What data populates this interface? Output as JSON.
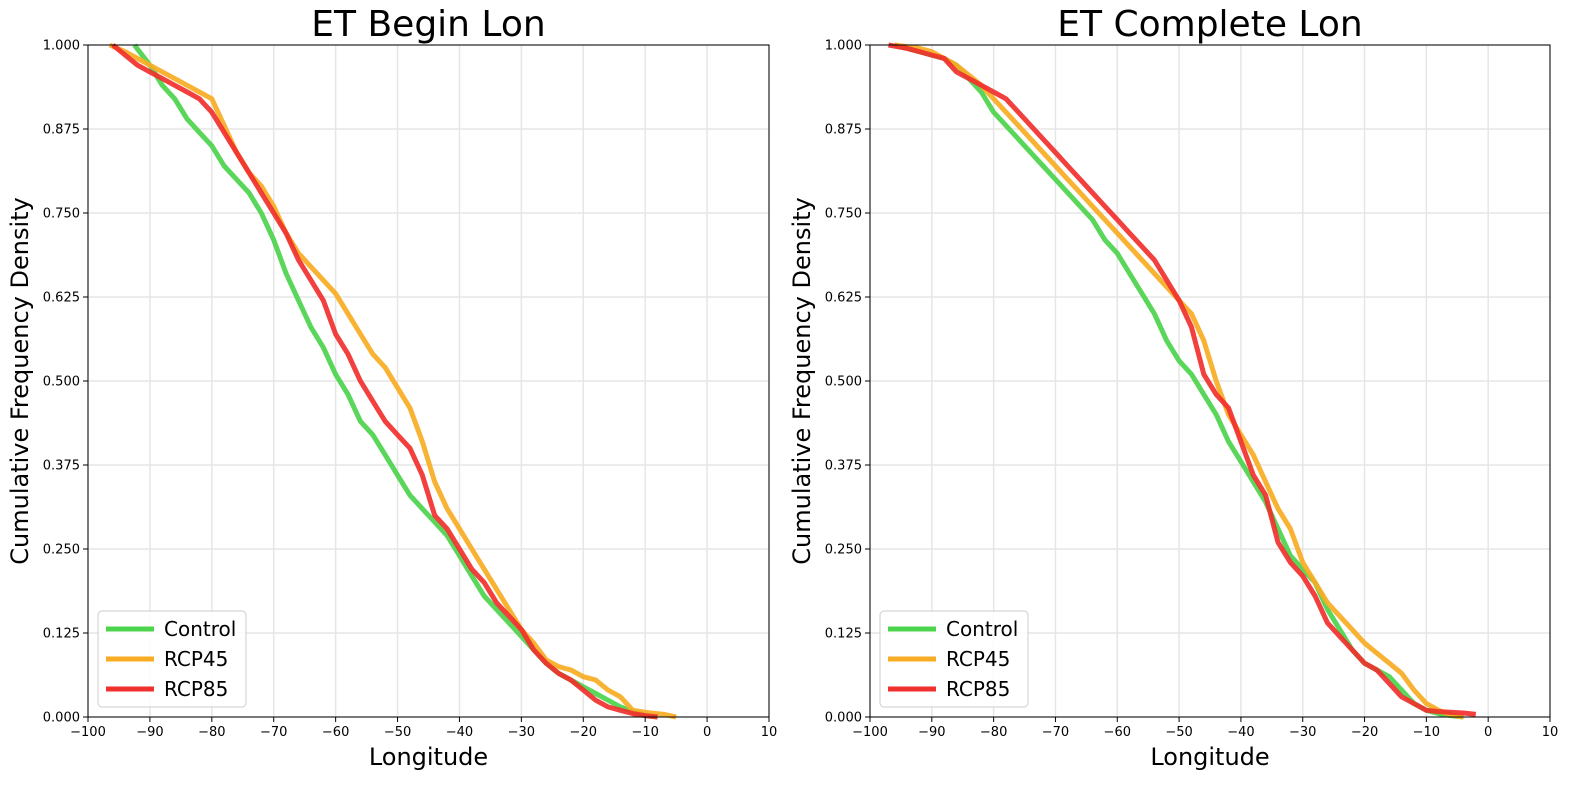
{
  "chart_data": [
    {
      "type": "line",
      "title": "ET Begin Lon",
      "xlabel": "Longitude",
      "ylabel": "Cumulative Frequency Density",
      "xlim": [
        -100,
        10
      ],
      "ylim": [
        0,
        1
      ],
      "xticks": [
        "−100",
        "−90",
        "−80",
        "−70",
        "−60",
        "−50",
        "−40",
        "−30",
        "−20",
        "−10",
        "0",
        "10"
      ],
      "yticks": [
        "0.000",
        "0.125",
        "0.250",
        "0.375",
        "0.500",
        "0.625",
        "0.750",
        "0.875",
        "1.000"
      ],
      "grid": true,
      "legend": "lower-left",
      "series": [
        {
          "name": "Control",
          "color": "#4cd44c",
          "x": [
            -92.5,
            -90,
            -88,
            -86,
            -84,
            -82,
            -80,
            -78,
            -76,
            -74,
            -72,
            -70,
            -68,
            -66,
            -64,
            -62,
            -60,
            -58,
            -56,
            -54,
            -52,
            -50,
            -48,
            -46,
            -44,
            -42,
            -40,
            -38,
            -36,
            -34,
            -32,
            -30,
            -28,
            -26,
            -24,
            -22,
            -20,
            -18,
            -16,
            -14,
            -12,
            -10,
            -8
          ],
          "y": [
            1.0,
            0.97,
            0.94,
            0.92,
            0.89,
            0.87,
            0.85,
            0.82,
            0.8,
            0.78,
            0.75,
            0.71,
            0.66,
            0.62,
            0.58,
            0.55,
            0.51,
            0.48,
            0.44,
            0.42,
            0.39,
            0.36,
            0.33,
            0.31,
            0.29,
            0.27,
            0.24,
            0.21,
            0.18,
            0.16,
            0.14,
            0.12,
            0.1,
            0.08,
            0.065,
            0.055,
            0.045,
            0.035,
            0.025,
            0.015,
            0.008,
            0.003,
            0.0
          ]
        },
        {
          "name": "RCP45",
          "color": "#f8ac23",
          "x": [
            -96.5,
            -94,
            -92,
            -90,
            -88,
            -86,
            -84,
            -82,
            -80,
            -78,
            -76,
            -74,
            -72,
            -70,
            -68,
            -66,
            -64,
            -62,
            -60,
            -58,
            -56,
            -54,
            -52,
            -50,
            -48,
            -46,
            -44,
            -42,
            -40,
            -38,
            -36,
            -34,
            -32,
            -30,
            -28,
            -26,
            -24,
            -22,
            -20,
            -18,
            -16,
            -14,
            -12,
            -10,
            -7,
            -5
          ],
          "y": [
            1.0,
            0.99,
            0.98,
            0.97,
            0.96,
            0.95,
            0.94,
            0.93,
            0.92,
            0.88,
            0.84,
            0.81,
            0.79,
            0.76,
            0.72,
            0.69,
            0.67,
            0.65,
            0.63,
            0.6,
            0.57,
            0.54,
            0.52,
            0.49,
            0.46,
            0.41,
            0.35,
            0.31,
            0.28,
            0.25,
            0.22,
            0.19,
            0.16,
            0.13,
            0.11,
            0.085,
            0.075,
            0.07,
            0.06,
            0.055,
            0.04,
            0.03,
            0.01,
            0.007,
            0.004,
            0.0
          ]
        },
        {
          "name": "RCP85",
          "color": "#f0302c",
          "x": [
            -96,
            -94,
            -92,
            -90,
            -88,
            -86,
            -84,
            -82,
            -80,
            -78,
            -76,
            -74,
            -72,
            -70,
            -68,
            -66,
            -64,
            -62,
            -60,
            -58,
            -56,
            -54,
            -52,
            -50,
            -48,
            -46,
            -44,
            -42,
            -40,
            -38,
            -36,
            -34,
            -32,
            -30,
            -28,
            -26,
            -24,
            -22,
            -20,
            -18,
            -16,
            -14,
            -12,
            -10,
            -8
          ],
          "y": [
            1.0,
            0.985,
            0.97,
            0.96,
            0.95,
            0.94,
            0.93,
            0.92,
            0.9,
            0.87,
            0.84,
            0.81,
            0.78,
            0.75,
            0.72,
            0.68,
            0.65,
            0.62,
            0.57,
            0.54,
            0.5,
            0.47,
            0.44,
            0.42,
            0.4,
            0.36,
            0.3,
            0.28,
            0.25,
            0.22,
            0.2,
            0.17,
            0.15,
            0.13,
            0.1,
            0.08,
            0.065,
            0.055,
            0.04,
            0.025,
            0.015,
            0.01,
            0.005,
            0.002,
            0.0
          ]
        }
      ]
    },
    {
      "type": "line",
      "title": "ET Complete Lon",
      "xlabel": "Longitude",
      "ylabel": "Cumulative Frequency Density",
      "xlim": [
        -100,
        10
      ],
      "ylim": [
        0,
        1
      ],
      "xticks": [
        "−100",
        "−90",
        "−80",
        "−70",
        "−60",
        "−50",
        "−40",
        "−30",
        "−20",
        "−10",
        "0",
        "10"
      ],
      "yticks": [
        "0.000",
        "0.125",
        "0.250",
        "0.375",
        "0.500",
        "0.625",
        "0.750",
        "0.875",
        "1.000"
      ],
      "grid": true,
      "legend": "lower-left",
      "series": [
        {
          "name": "Control",
          "color": "#4cd44c",
          "x": [
            -96,
            -92,
            -90,
            -88,
            -86,
            -84,
            -82,
            -80,
            -78,
            -76,
            -74,
            -72,
            -70,
            -68,
            -66,
            -64,
            -62,
            -60,
            -58,
            -56,
            -54,
            -52,
            -50,
            -48,
            -46,
            -44,
            -42,
            -40,
            -38,
            -36,
            -34,
            -32,
            -30,
            -28,
            -26,
            -24,
            -22,
            -20,
            -18,
            -16,
            -14,
            -12,
            -10,
            -8,
            -6,
            -4
          ],
          "y": [
            1.0,
            0.99,
            0.985,
            0.98,
            0.97,
            0.95,
            0.93,
            0.9,
            0.88,
            0.86,
            0.84,
            0.82,
            0.8,
            0.78,
            0.76,
            0.74,
            0.71,
            0.69,
            0.66,
            0.63,
            0.6,
            0.56,
            0.53,
            0.51,
            0.48,
            0.45,
            0.41,
            0.38,
            0.35,
            0.32,
            0.28,
            0.24,
            0.22,
            0.2,
            0.16,
            0.13,
            0.1,
            0.08,
            0.07,
            0.06,
            0.04,
            0.02,
            0.01,
            0.005,
            0.002,
            0.0
          ]
        },
        {
          "name": "RCP45",
          "color": "#f8ac23",
          "x": [
            -96,
            -92,
            -90,
            -88,
            -86,
            -84,
            -82,
            -80,
            -78,
            -76,
            -74,
            -72,
            -70,
            -68,
            -66,
            -64,
            -62,
            -60,
            -58,
            -56,
            -54,
            -52,
            -50,
            -48,
            -46,
            -44,
            -42,
            -40,
            -38,
            -36,
            -34,
            -32,
            -30,
            -28,
            -26,
            -24,
            -22,
            -20,
            -18,
            -16,
            -14,
            -12,
            -10,
            -8,
            -6,
            -4
          ],
          "y": [
            1.0,
            0.995,
            0.99,
            0.98,
            0.97,
            0.955,
            0.94,
            0.92,
            0.9,
            0.88,
            0.86,
            0.84,
            0.82,
            0.8,
            0.78,
            0.76,
            0.74,
            0.72,
            0.7,
            0.68,
            0.66,
            0.64,
            0.62,
            0.6,
            0.56,
            0.5,
            0.45,
            0.42,
            0.39,
            0.35,
            0.31,
            0.28,
            0.23,
            0.2,
            0.17,
            0.15,
            0.13,
            0.11,
            0.095,
            0.08,
            0.065,
            0.04,
            0.02,
            0.01,
            0.003,
            0.0
          ]
        },
        {
          "name": "RCP85",
          "color": "#f0302c",
          "x": [
            -97,
            -94,
            -92,
            -90,
            -88,
            -86,
            -84,
            -82,
            -80,
            -78,
            -76,
            -74,
            -72,
            -70,
            -68,
            -66,
            -64,
            -62,
            -60,
            -58,
            -56,
            -54,
            -52,
            -50,
            -48,
            -46,
            -44,
            -42,
            -40,
            -38,
            -36,
            -34,
            -32,
            -30,
            -28,
            -26,
            -24,
            -22,
            -20,
            -18,
            -16,
            -14,
            -12,
            -10,
            -8,
            -4,
            -2
          ],
          "y": [
            1.0,
            0.995,
            0.99,
            0.985,
            0.98,
            0.96,
            0.95,
            0.94,
            0.93,
            0.92,
            0.9,
            0.88,
            0.86,
            0.84,
            0.82,
            0.8,
            0.78,
            0.76,
            0.74,
            0.72,
            0.7,
            0.68,
            0.65,
            0.62,
            0.58,
            0.51,
            0.48,
            0.46,
            0.41,
            0.36,
            0.33,
            0.26,
            0.23,
            0.21,
            0.18,
            0.14,
            0.12,
            0.1,
            0.08,
            0.07,
            0.05,
            0.03,
            0.02,
            0.01,
            0.008,
            0.006,
            0.004
          ]
        }
      ]
    }
  ]
}
